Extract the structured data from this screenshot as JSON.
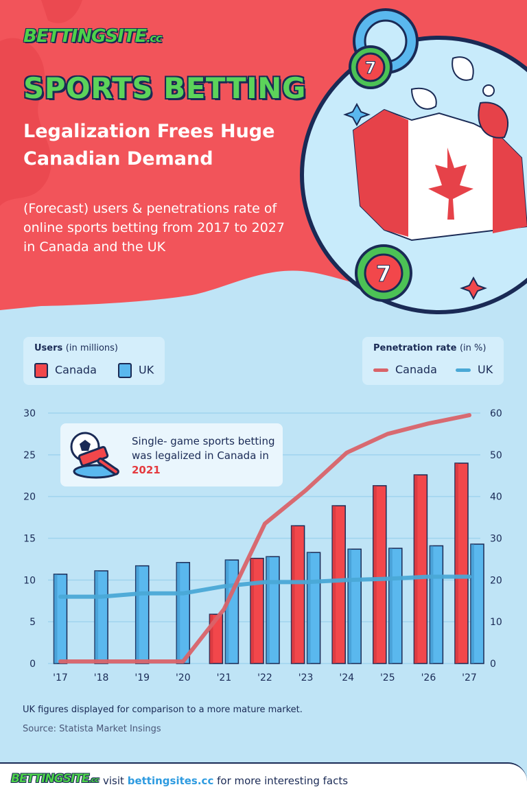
{
  "brand": {
    "logo_main": "BETTINGSITE",
    "logo_suffix": ".cc"
  },
  "header": {
    "title": "SPORTS BETTING",
    "subtitle": "Legalization Frees Huge Canadian Demand",
    "description": "(Forecast) users & penetrations rate of online sports betting from 2017 to 2027 in Canada and the UK"
  },
  "legend": {
    "users": {
      "title": "Users",
      "unit": "(in millions)",
      "items": [
        "Canada",
        "UK"
      ]
    },
    "penetration": {
      "title": "Penetration rate",
      "unit": "(in %)",
      "items": [
        "Canada",
        "UK"
      ]
    }
  },
  "callout": {
    "text": "Single- game sports betting was legalized in Canada in",
    "highlight": "2021"
  },
  "chart_data": {
    "type": "bar",
    "categories": [
      "'17",
      "'18",
      "'19",
      "'20",
      "'21",
      "'22",
      "'23",
      "'24",
      "'25",
      "'26",
      "'27"
    ],
    "series": [
      {
        "name": "Canada",
        "kind": "bar",
        "axis": "left",
        "values": [
          null,
          null,
          null,
          null,
          5.9,
          12.6,
          16.5,
          18.9,
          21.3,
          22.6,
          24.0
        ]
      },
      {
        "name": "UK",
        "kind": "bar",
        "axis": "left",
        "values": [
          10.7,
          11.1,
          11.7,
          12.1,
          12.4,
          12.8,
          13.3,
          13.7,
          13.8,
          14.1,
          14.3
        ]
      },
      {
        "name": "Canada",
        "kind": "line",
        "axis": "right",
        "values": [
          0.5,
          0.5,
          0.5,
          0.5,
          13,
          33.5,
          41.5,
          50.5,
          55,
          57.5,
          59.5
        ]
      },
      {
        "name": "UK",
        "kind": "line",
        "axis": "right",
        "values": [
          16,
          16,
          16.8,
          16.8,
          18.5,
          19.5,
          19.5,
          20,
          20.3,
          20.8,
          20.8
        ]
      }
    ],
    "y_left": {
      "min": 0,
      "max": 30,
      "ticks": [
        0,
        5,
        10,
        15,
        20,
        25,
        30
      ]
    },
    "y_right": {
      "min": 0,
      "max": 60,
      "ticks": [
        0,
        10,
        20,
        30,
        40,
        50,
        60
      ]
    },
    "grid": true,
    "colors": {
      "canada_bar": "#f2474b",
      "uk_bar": "#5ab8ee",
      "canada_line": "#d96369",
      "uk_line": "#4aa8d6",
      "outline": "#1a2a55"
    }
  },
  "notes": {
    "comparison": "UK figures displayed for comparison to a more mature market.",
    "source": "Source: Statista Market Insings"
  },
  "footer": {
    "prefix": "visit",
    "link": "bettingsites.cc",
    "suffix": "for more interesting facts"
  },
  "decor": {
    "chip_label": "7"
  }
}
